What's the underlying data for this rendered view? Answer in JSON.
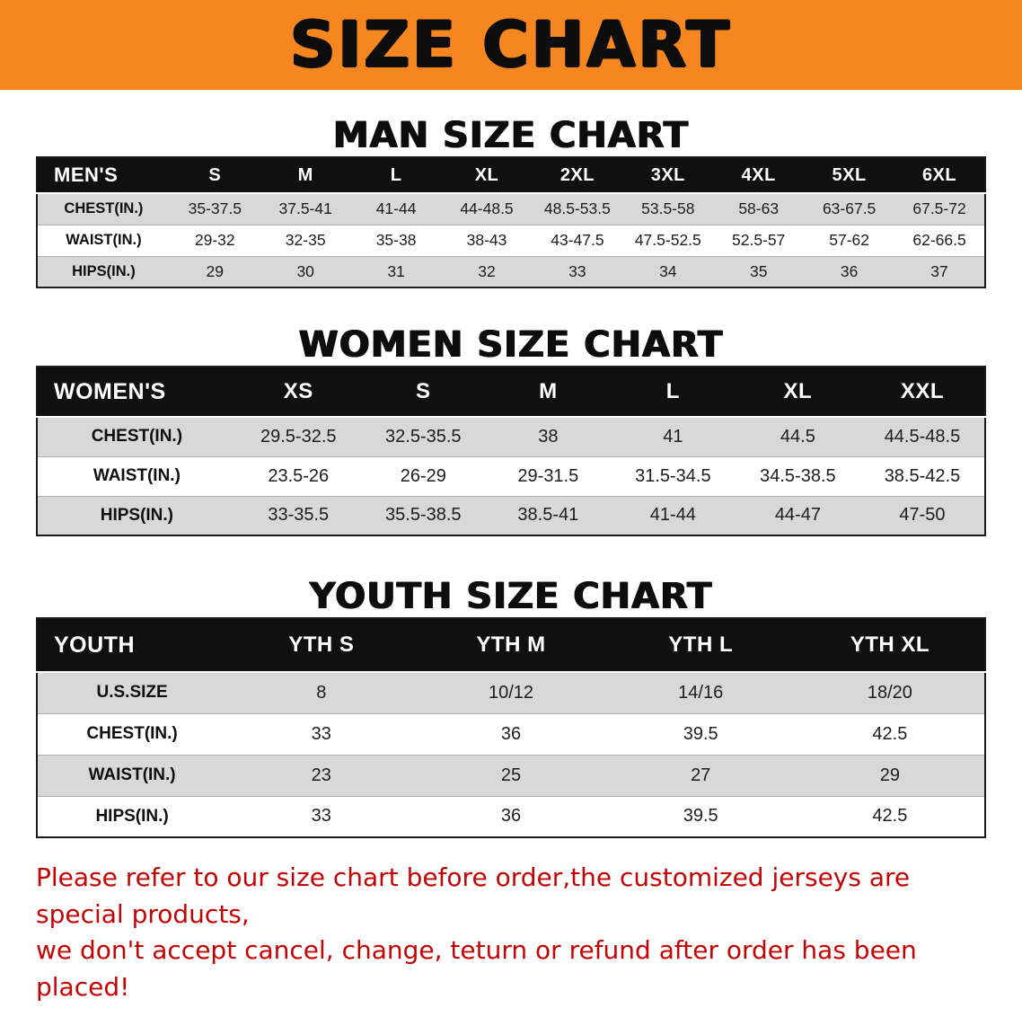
{
  "colors": {
    "banner_bg": "#f6861f",
    "table_header_bg": "#101010",
    "row_alt_gray": "#d8d8d8",
    "disclaimer_red": "#c40404"
  },
  "banner": {
    "title": "SIZE CHART"
  },
  "sections": {
    "men": {
      "heading": "MAN SIZE CHART",
      "table": {
        "header": [
          "MEN'S",
          "S",
          "M",
          "L",
          "XL",
          "2XL",
          "3XL",
          "4XL",
          "5XL",
          "6XL"
        ],
        "rows": [
          {
            "label": "CHEST(IN.)",
            "values": [
              "35-37.5",
              "37.5-41",
              "41-44",
              "44-48.5",
              "48.5-53.5",
              "53.5-58",
              "58-63",
              "63-67.5",
              "67.5-72"
            ]
          },
          {
            "label": "WAIST(IN.)",
            "values": [
              "29-32",
              "32-35",
              "35-38",
              "38-43",
              "43-47.5",
              "47.5-52.5",
              "52.5-57",
              "57-62",
              "62-66.5"
            ]
          },
          {
            "label": "HIPS(IN.)",
            "values": [
              "29",
              "30",
              "31",
              "32",
              "33",
              "34",
              "35",
              "36",
              "37"
            ]
          }
        ]
      }
    },
    "women": {
      "heading": "WOMEN SIZE CHART",
      "table": {
        "header": [
          "WOMEN'S",
          "XS",
          "S",
          "M",
          "L",
          "XL",
          "XXL"
        ],
        "rows": [
          {
            "label": "CHEST(IN.)",
            "values": [
              "29.5-32.5",
              "32.5-35.5",
              "38",
              "41",
              "44.5",
              "44.5-48.5"
            ]
          },
          {
            "label": "WAIST(IN.)",
            "values": [
              "23.5-26",
              "26-29",
              "29-31.5",
              "31.5-34.5",
              "34.5-38.5",
              "38.5-42.5"
            ]
          },
          {
            "label": "HIPS(IN.)",
            "values": [
              "33-35.5",
              "35.5-38.5",
              "38.5-41",
              "41-44",
              "44-47",
              "47-50"
            ]
          }
        ]
      }
    },
    "youth": {
      "heading": "YOUTH SIZE CHART",
      "table": {
        "header": [
          "YOUTH",
          "YTH S",
          "YTH M",
          "YTH L",
          "YTH XL"
        ],
        "rows": [
          {
            "label": "U.S.SIZE",
            "values": [
              "8",
              "10/12",
              "14/16",
              "18/20"
            ]
          },
          {
            "label": "CHEST(IN.)",
            "values": [
              "33",
              "36",
              "39.5",
              "42.5"
            ]
          },
          {
            "label": "WAIST(IN.)",
            "values": [
              "23",
              "25",
              "27",
              "29"
            ]
          },
          {
            "label": "HIPS(IN.)",
            "values": [
              "33",
              "36",
              "39.5",
              "42.5"
            ]
          }
        ]
      }
    }
  },
  "disclaimer": {
    "line1": "Please refer to our size chart before order,the customized jerseys are special products,",
    "line2": "we don't accept cancel, change, teturn or refund after order has been placed!"
  }
}
